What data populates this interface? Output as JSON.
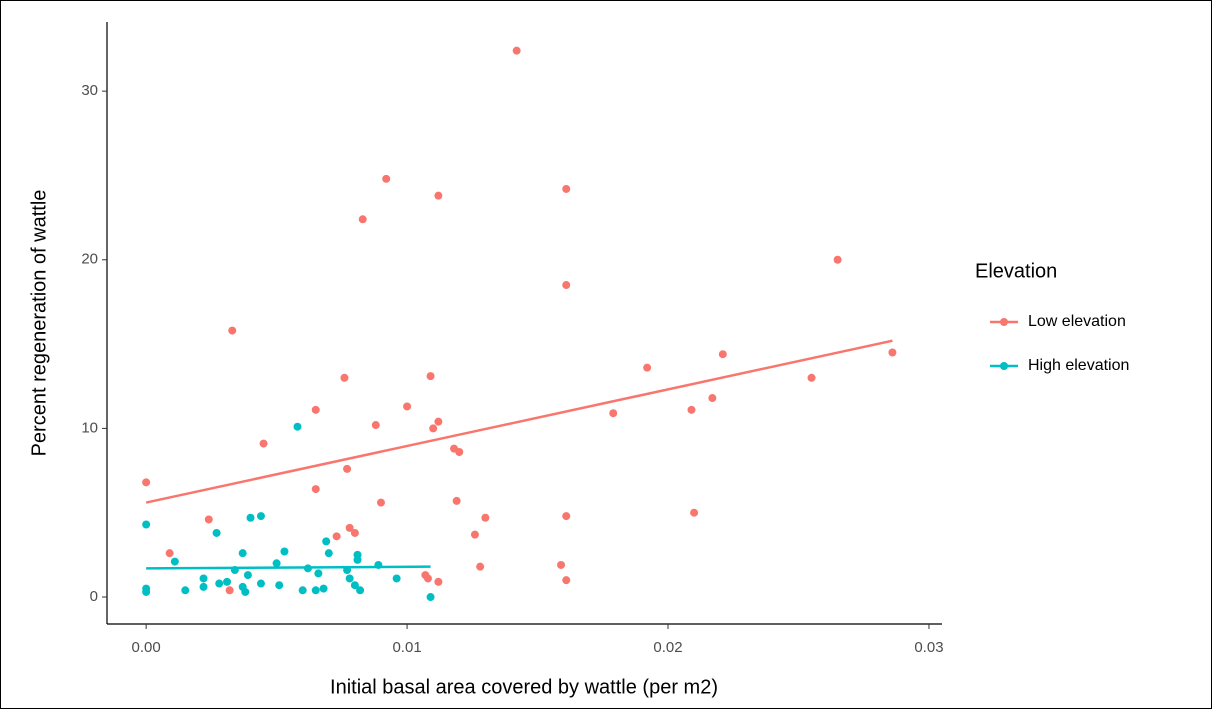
{
  "chart_data": {
    "type": "scatter",
    "x_label": "Initial basal area covered by wattle (per m2)",
    "y_label": "Percent regeneration of wattle",
    "legend_title": "Elevation",
    "legend": "right",
    "grid": false,
    "xlim": [
      -0.0015,
      0.0305
    ],
    "ylim": [
      -1.6,
      34.1
    ],
    "xticks": [
      {
        "value": 0,
        "label": "0.00"
      },
      {
        "value": 0.01,
        "label": "0.01"
      },
      {
        "value": 0.02,
        "label": "0.02"
      },
      {
        "value": 0.03,
        "label": "0.03"
      }
    ],
    "yticks": [
      0,
      10,
      20,
      30
    ],
    "series": [
      {
        "name": "Low elevation",
        "color": "#F8766D",
        "x": [
          0,
          0.0009,
          0.0024,
          0.0032,
          0.0033,
          0.0045,
          0.0065,
          0.0065,
          0.0073,
          0.0076,
          0.0077,
          0.0078,
          0.008,
          0.0083,
          0.0088,
          0.009,
          0.0092,
          0.01,
          0.0107,
          0.0108,
          0.0109,
          0.011,
          0.0112,
          0.0112,
          0.0112,
          0.0118,
          0.012,
          0.0119,
          0.0126,
          0.0128,
          0.013,
          0.0142,
          0.0159,
          0.0161,
          0.0161,
          0.0161,
          0.0161,
          0.0179,
          0.0192,
          0.0209,
          0.021,
          0.0217,
          0.0221,
          0.0255,
          0.0265,
          0.0286
        ],
        "values": [
          6.8,
          2.6,
          4.6,
          0.4,
          15.8,
          9.1,
          11.1,
          6.4,
          3.6,
          13.0,
          7.6,
          4.1,
          3.8,
          22.4,
          10.2,
          5.6,
          24.8,
          11.3,
          1.3,
          1.1,
          13.1,
          10.0,
          10.4,
          23.8,
          0.9,
          8.8,
          8.6,
          5.7,
          3.7,
          1.8,
          4.7,
          32.4,
          1.9,
          24.2,
          18.5,
          4.8,
          1.0,
          10.9,
          13.6,
          11.1,
          5.0,
          11.8,
          14.4,
          13.0,
          20.0,
          14.5
        ],
        "trend_x": [
          0,
          0.0286
        ],
        "trend_y": [
          5.6,
          15.2
        ]
      },
      {
        "name": "High elevation",
        "color": "#00BFC4",
        "x": [
          0,
          0,
          0,
          0.0011,
          0.0015,
          0.0022,
          0.0022,
          0.0027,
          0.0028,
          0.0031,
          0.0034,
          0.0037,
          0.0037,
          0.0038,
          0.0039,
          0.004,
          0.0044,
          0.0044,
          0.005,
          0.0051,
          0.0053,
          0.0058,
          0.006,
          0.0062,
          0.0065,
          0.0066,
          0.0068,
          0.0069,
          0.007,
          0.0077,
          0.0078,
          0.008,
          0.0081,
          0.0081,
          0.0082,
          0.0089,
          0.0096,
          0.0109
        ],
        "values": [
          4.3,
          0.5,
          0.3,
          2.1,
          0.4,
          0.6,
          1.1,
          3.8,
          0.8,
          0.9,
          1.6,
          2.6,
          0.6,
          0.3,
          1.3,
          4.7,
          4.8,
          0.8,
          2.0,
          0.7,
          2.7,
          10.1,
          0.4,
          1.7,
          0.4,
          1.4,
          0.5,
          3.3,
          2.6,
          1.6,
          1.1,
          0.7,
          2.5,
          2.2,
          0.4,
          1.9,
          1.1,
          0.0
        ],
        "trend_x": [
          0,
          0.0109
        ],
        "trend_y": [
          1.7,
          1.8
        ]
      }
    ]
  }
}
